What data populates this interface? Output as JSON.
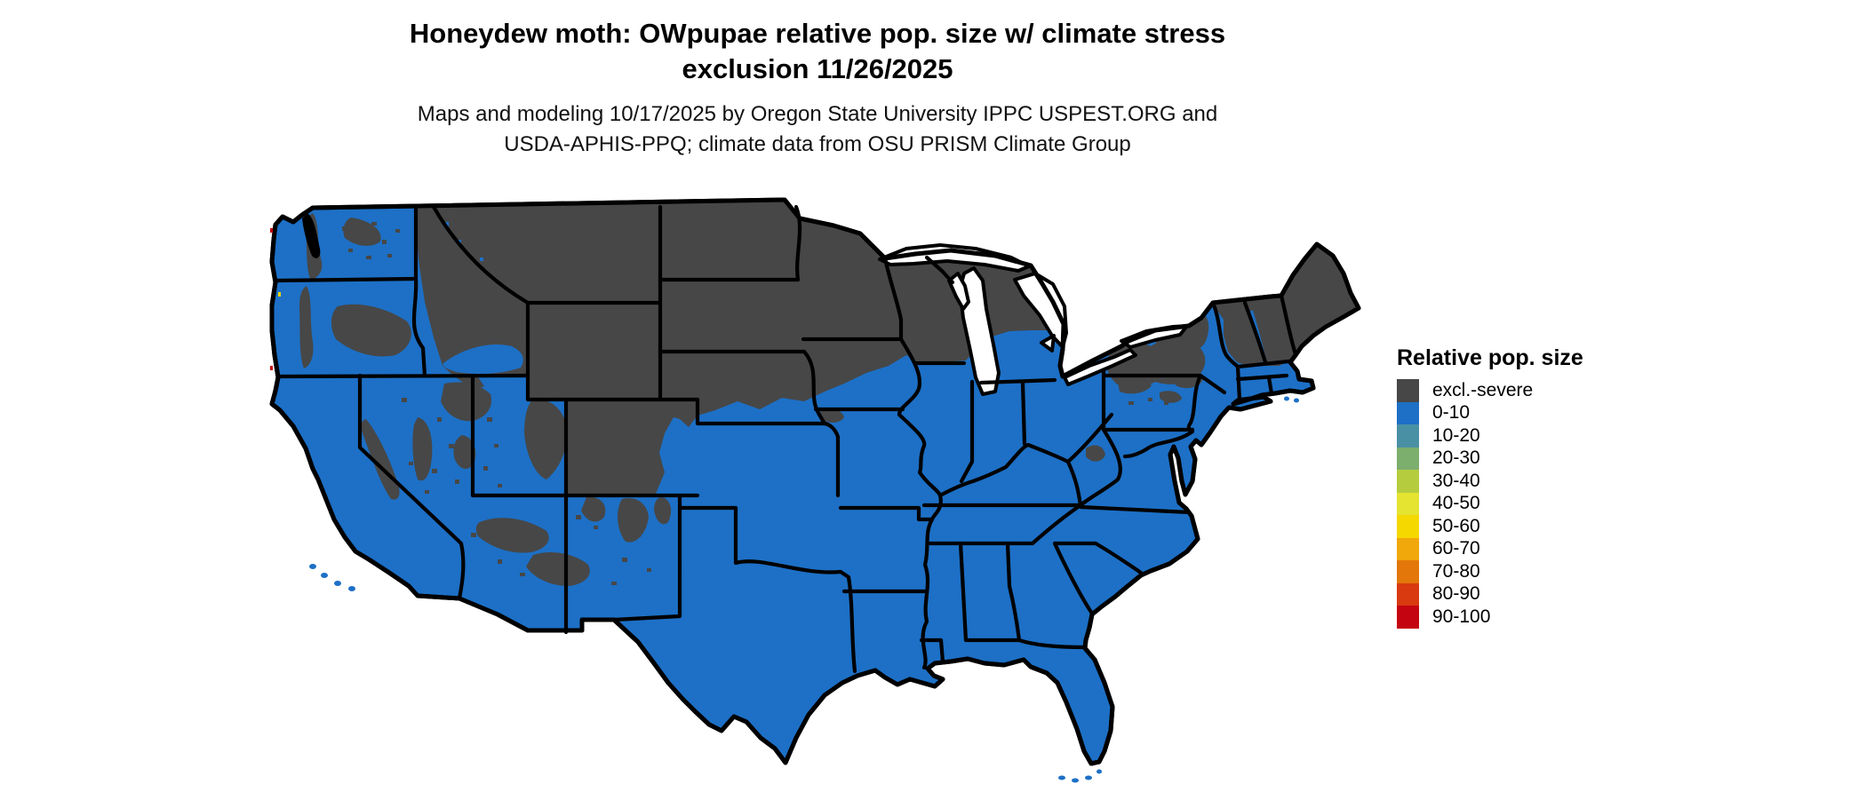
{
  "header": {
    "title_lines": [
      "Honeydew moth: OWpupae relative pop. size w/ climate stress",
      "exclusion 11/26/2025"
    ],
    "subtitle_lines": [
      "Maps and modeling 10/17/2025 by Oregon State University IPPC USPEST.ORG and",
      "USDA-APHIS-PPQ; climate data from OSU PRISM Climate Group"
    ]
  },
  "legend": {
    "title": "Relative pop. size",
    "items": [
      {
        "label": "excl.-severe",
        "color": "#474747"
      },
      {
        "label": "0-10",
        "color": "#1d70c6"
      },
      {
        "label": "10-20",
        "color": "#4a90a4"
      },
      {
        "label": "20-30",
        "color": "#7cae6e"
      },
      {
        "label": "30-40",
        "color": "#b5cc3f"
      },
      {
        "label": "40-50",
        "color": "#e4e431"
      },
      {
        "label": "50-60",
        "color": "#f5d800"
      },
      {
        "label": "60-70",
        "color": "#f0a80b"
      },
      {
        "label": "70-80",
        "color": "#e37709"
      },
      {
        "label": "80-90",
        "color": "#d93a10"
      },
      {
        "label": "90-100",
        "color": "#c40511"
      }
    ]
  },
  "map": {
    "type": "choropleth-raster",
    "extent": "Continental United States with state boundaries",
    "colors": {
      "water_background": "#ffffff",
      "boundary_lines": "#000000",
      "dominant_land_class": "#1d70c6",
      "excluded_class": "#474747"
    },
    "classified_regions": {
      "excluded_severe": [
        "Montana, Wyoming, North Dakota, South Dakota, Minnesota, Wisconsin, most of Nebraska and NW Iowa",
        "Upper and northern Lower Michigan",
        "Cascades, Sierra Nevada, Great Basin ranges, Wasatch/Utah high country, Colorado Rockies, Mogollon Rim highlands",
        "Central Idaho and eastern Oregon/Washington highlands",
        "Upstate New York (Adirondacks/Catskills), northern Pennsylvania patches, Vermont, New Hampshire, interior Maine",
        "Small West Virginia highlands patch"
      ],
      "pop_0_10": [
        "Pacific coast and valleys (W Washington, W Oregon, most of California)",
        "Southwest deserts (S Nevada, Arizona, New Mexico)",
        "Central and southern plains (Kansas, Oklahoma, Texas)",
        "Midwest south of the Great Lakes (S Iowa, Missouri, Illinois, Indiana, Ohio, S Michigan)",
        "Entire South and Gulf coast, Florida",
        "Mid-Atlantic and southern New England coast, coastal Maine fringe"
      ]
    }
  }
}
